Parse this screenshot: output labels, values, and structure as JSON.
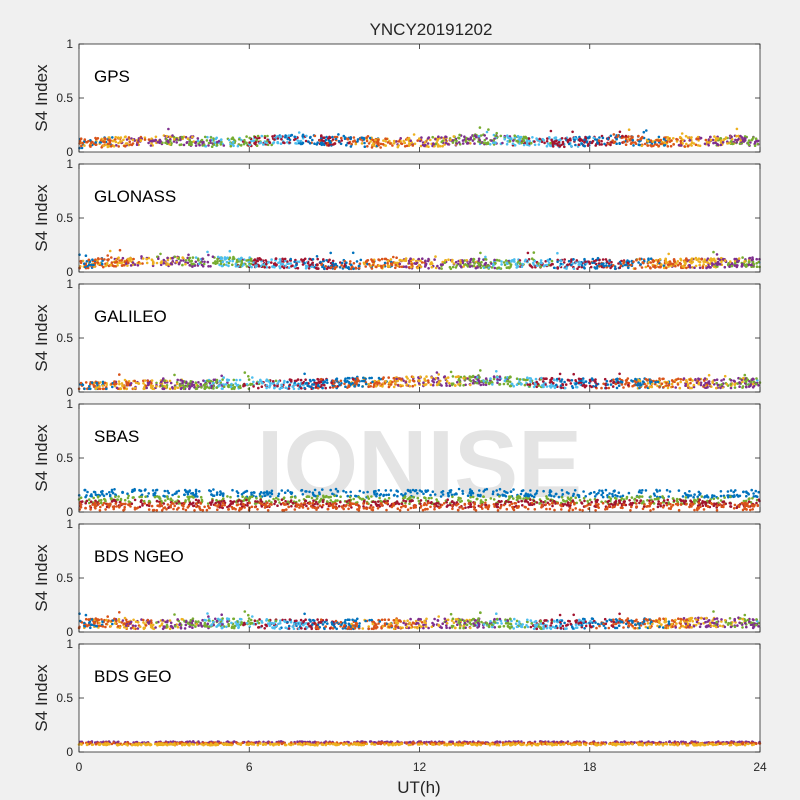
{
  "figure": {
    "title": "YNCY20191202",
    "xlabel": "UT(h)",
    "watermark": "IONISE",
    "background": "#f0f0f0"
  },
  "colors": {
    "palette": [
      "#0072bd",
      "#d95319",
      "#edb120",
      "#7e2f8e",
      "#77ac30",
      "#4dbeee",
      "#a2142f"
    ]
  },
  "chart_data": [
    {
      "type": "scatter",
      "label": "GPS",
      "ylabel": "S4 Index",
      "xlim": [
        0,
        24
      ],
      "ylim": [
        0,
        1
      ],
      "xticks": [
        0,
        6,
        12,
        18,
        24
      ],
      "yticks": [
        0,
        0.5,
        1
      ],
      "typical_s4_range": [
        0.03,
        0.18
      ],
      "max_s4": 0.3,
      "series": [
        {
          "values": [
            0.08,
            0.09,
            0.1,
            0.11,
            0.1,
            0.09,
            0.1,
            0.11,
            0.12,
            0.1,
            0.09,
            0.08,
            0.09,
            0.1,
            0.12,
            0.11,
            0.1,
            0.09,
            0.1,
            0.11,
            0.1,
            0.09,
            0.1,
            0.11,
            0.1
          ]
        }
      ]
    },
    {
      "type": "scatter",
      "label": "GLONASS",
      "ylabel": "S4 Index",
      "xlim": [
        0,
        24
      ],
      "ylim": [
        0,
        1
      ],
      "xticks": [
        0,
        6,
        12,
        18,
        24
      ],
      "yticks": [
        0,
        0.5,
        1
      ],
      "typical_s4_range": [
        0.03,
        0.16
      ],
      "max_s4": 0.28,
      "series": [
        {
          "values": [
            0.07,
            0.09,
            0.1,
            0.1,
            0.09,
            0.1,
            0.09,
            0.08,
            0.08,
            0.07,
            0.07,
            0.08,
            0.08,
            0.07,
            0.08,
            0.07,
            0.08,
            0.07,
            0.08,
            0.07,
            0.08,
            0.08,
            0.08,
            0.09,
            0.09
          ]
        }
      ]
    },
    {
      "type": "scatter",
      "label": "GALILEO",
      "ylabel": "S4 Index",
      "xlim": [
        0,
        24
      ],
      "ylim": [
        0,
        1
      ],
      "xticks": [
        0,
        6,
        12,
        18,
        24
      ],
      "yticks": [
        0,
        0.5,
        1
      ],
      "typical_s4_range": [
        0.03,
        0.14
      ],
      "max_s4": 0.2,
      "series": [
        {
          "values": [
            0.05,
            0.05,
            0.06,
            0.07,
            0.07,
            0.07,
            0.07,
            0.07,
            0.07,
            0.08,
            0.09,
            0.09,
            0.1,
            0.1,
            0.11,
            0.1,
            0.09,
            0.08,
            0.08,
            0.08,
            0.08,
            0.08,
            0.08,
            0.08,
            0.09
          ]
        }
      ]
    },
    {
      "type": "scatter",
      "label": "SBAS",
      "ylabel": "S4 Index",
      "xlim": [
        0,
        24
      ],
      "ylim": [
        0,
        1
      ],
      "xticks": [
        0,
        6,
        12,
        18,
        24
      ],
      "yticks": [
        0,
        0.5,
        1
      ],
      "typical_s4_range": [
        0.03,
        0.22
      ],
      "max_s4": 0.26,
      "series": [
        {
          "values": [
            0.17,
            0.18,
            0.18,
            0.17,
            0.17,
            0.18,
            0.17,
            0.17,
            0.17,
            0.18,
            0.17,
            0.17,
            0.17,
            0.18,
            0.18,
            0.18,
            0.17,
            0.17,
            0.17,
            0.17,
            0.17,
            0.17,
            0.17,
            0.17,
            0.17
          ]
        },
        {
          "values": [
            0.11,
            0.11,
            0.12,
            0.11,
            0.11,
            0.11,
            0.11,
            0.11,
            0.11,
            0.12,
            0.11,
            0.11,
            0.11,
            0.11,
            0.11,
            0.12,
            0.11,
            0.11,
            0.11,
            0.11,
            0.11,
            0.11,
            0.11,
            0.11,
            0.11
          ]
        },
        {
          "values": [
            0.07,
            0.08,
            0.08,
            0.07,
            0.08,
            0.07,
            0.08,
            0.08,
            0.07,
            0.08,
            0.07,
            0.08,
            0.08,
            0.08,
            0.07,
            0.08,
            0.08,
            0.07,
            0.08,
            0.08,
            0.07,
            0.08,
            0.08,
            0.07,
            0.08
          ]
        },
        {
          "values": [
            0.05,
            0.05,
            0.05,
            0.05,
            0.05,
            0.05,
            0.05,
            0.05,
            0.05,
            0.05,
            0.05,
            0.05,
            0.05,
            0.05,
            0.05,
            0.05,
            0.05,
            0.05,
            0.05,
            0.05,
            0.05,
            0.05,
            0.05,
            0.05,
            0.05
          ]
        }
      ]
    },
    {
      "type": "scatter",
      "label": "BDS NGEO",
      "ylabel": "S4 Index",
      "xlim": [
        0,
        24
      ],
      "ylim": [
        0,
        1
      ],
      "xticks": [
        0,
        6,
        12,
        18,
        24
      ],
      "yticks": [
        0,
        0.5,
        1
      ],
      "typical_s4_range": [
        0.03,
        0.13
      ],
      "max_s4": 0.19,
      "series": [
        {
          "values": [
            0.08,
            0.08,
            0.07,
            0.07,
            0.08,
            0.08,
            0.08,
            0.07,
            0.07,
            0.07,
            0.07,
            0.07,
            0.08,
            0.08,
            0.08,
            0.08,
            0.07,
            0.07,
            0.08,
            0.08,
            0.08,
            0.08,
            0.09,
            0.09,
            0.08
          ]
        }
      ]
    },
    {
      "type": "scatter",
      "label": "BDS GEO",
      "ylabel": "S4 Index",
      "xlim": [
        0,
        24
      ],
      "ylim": [
        0,
        1
      ],
      "xticks": [
        0,
        6,
        12,
        18,
        24
      ],
      "yticks": [
        0,
        0.5,
        1
      ],
      "typical_s4_range": [
        0.06,
        0.1
      ],
      "max_s4": 0.1,
      "series": [
        {
          "values": [
            0.09,
            0.09,
            0.09,
            0.09,
            0.09,
            0.09,
            0.09,
            0.09,
            0.09,
            0.09,
            0.09,
            0.09,
            0.09,
            0.09,
            0.09,
            0.09,
            0.09,
            0.09,
            0.09,
            0.09,
            0.09,
            0.09,
            0.09,
            0.09,
            0.09
          ]
        },
        {
          "values": [
            0.08,
            0.08,
            0.08,
            0.08,
            0.08,
            0.08,
            0.08,
            0.08,
            0.08,
            0.08,
            0.08,
            0.08,
            0.08,
            0.08,
            0.08,
            0.08,
            0.08,
            0.08,
            0.08,
            0.08,
            0.08,
            0.08,
            0.08,
            0.08,
            0.08
          ]
        },
        {
          "values": [
            0.07,
            0.07,
            0.07,
            0.07,
            0.07,
            0.07,
            0.07,
            0.07,
            0.07,
            0.07,
            0.07,
            0.07,
            0.07,
            0.07,
            0.07,
            0.07,
            0.07,
            0.07,
            0.07,
            0.07,
            0.07,
            0.07,
            0.07,
            0.07,
            0.07
          ]
        }
      ]
    }
  ]
}
